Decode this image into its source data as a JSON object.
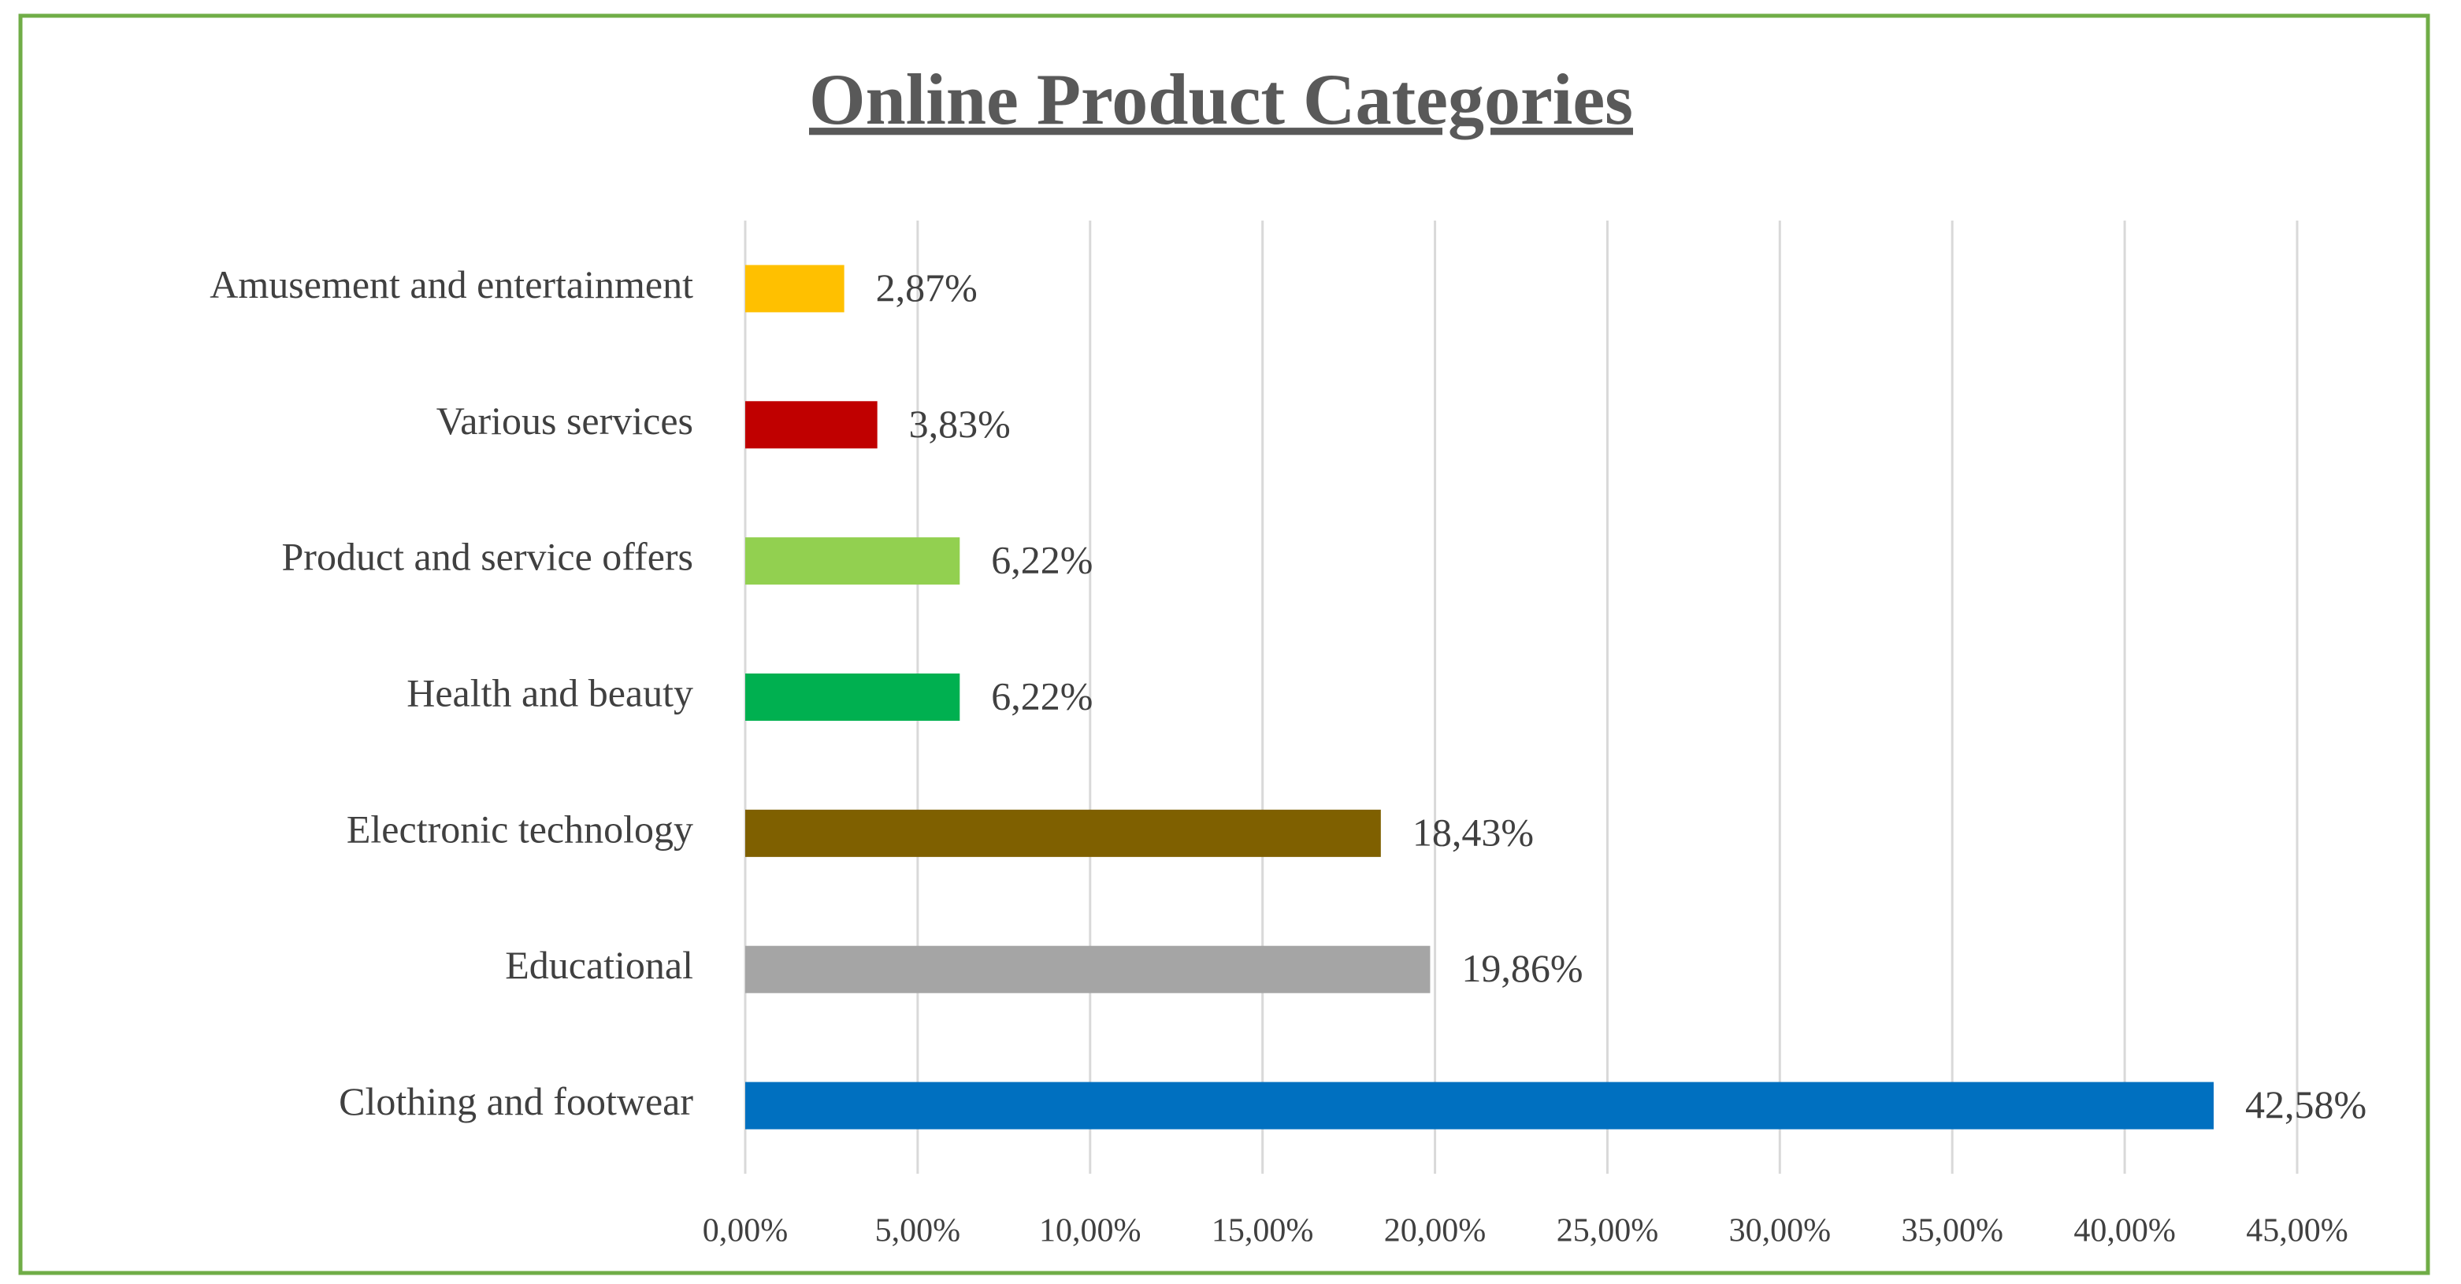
{
  "chart_data": {
    "type": "bar",
    "orientation": "horizontal",
    "title": "Online Product Categories",
    "categories": [
      "Amusement and entertainment",
      "Various services",
      "Product and service offers",
      "Health and beauty",
      "Electronic technology",
      "Educational",
      "Clothing and footwear"
    ],
    "values": [
      2.87,
      3.83,
      6.22,
      6.22,
      18.43,
      19.86,
      42.58
    ],
    "value_labels": [
      "2,87%",
      "3,83%",
      "6,22%",
      "6,22%",
      "18,43%",
      "19,86%",
      "42,58%"
    ],
    "colors": [
      "#ffc000",
      "#c00000",
      "#92d050",
      "#00b050",
      "#7f6000",
      "#a5a5a5",
      "#0070c0"
    ],
    "xlim": [
      0,
      45
    ],
    "xticks": [
      {
        "value": 0,
        "label": "0,00%"
      },
      {
        "value": 5,
        "label": "5,00%"
      },
      {
        "value": 10,
        "label": "10,00%"
      },
      {
        "value": 15,
        "label": "15,00%"
      },
      {
        "value": 20,
        "label": "20,00%"
      },
      {
        "value": 25,
        "label": "25,00%"
      },
      {
        "value": 30,
        "label": "30,00%"
      },
      {
        "value": 35,
        "label": "35,00%"
      },
      {
        "value": 40,
        "label": "40,00%"
      },
      {
        "value": 45,
        "label": "45,00%"
      }
    ],
    "grid": true
  }
}
